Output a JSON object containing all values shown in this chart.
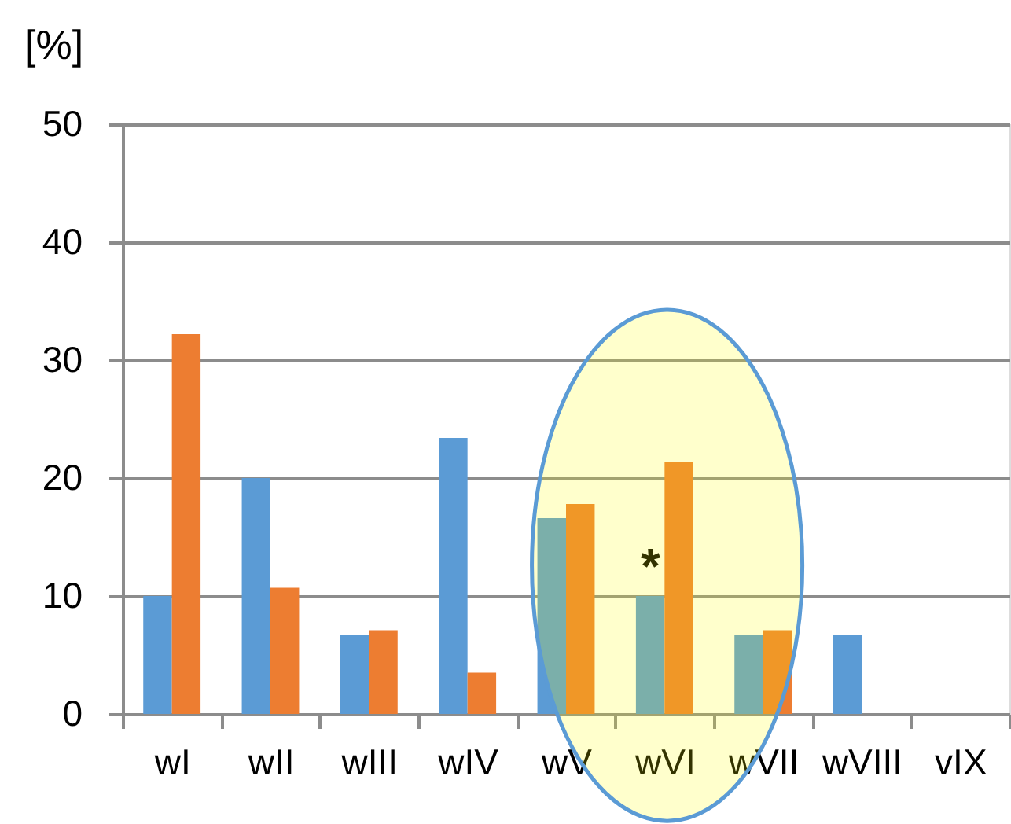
{
  "chart_data": {
    "type": "bar",
    "ylabel": "[%]",
    "categories": [
      "wI",
      "wII",
      "wIII",
      "wIV",
      "wV",
      "wVI",
      "wVII",
      "wVIII",
      "vIX"
    ],
    "series": [
      {
        "color": "#5b9bd5",
        "values": [
          10,
          20,
          6.7,
          23.4,
          16.6,
          10,
          6.7,
          6.7,
          null
        ]
      },
      {
        "color": "#ed7d31",
        "values": [
          32.2,
          10.7,
          7.1,
          3.5,
          17.8,
          21.4,
          7.1,
          null,
          null
        ]
      }
    ],
    "ylim": [
      0,
      50
    ],
    "yticks": [
      0,
      10,
      20,
      30,
      40,
      50
    ],
    "grid": "y",
    "legend": false,
    "annotations": [
      {
        "text": "*",
        "x": "wVI",
        "y": 13.6
      }
    ]
  }
}
